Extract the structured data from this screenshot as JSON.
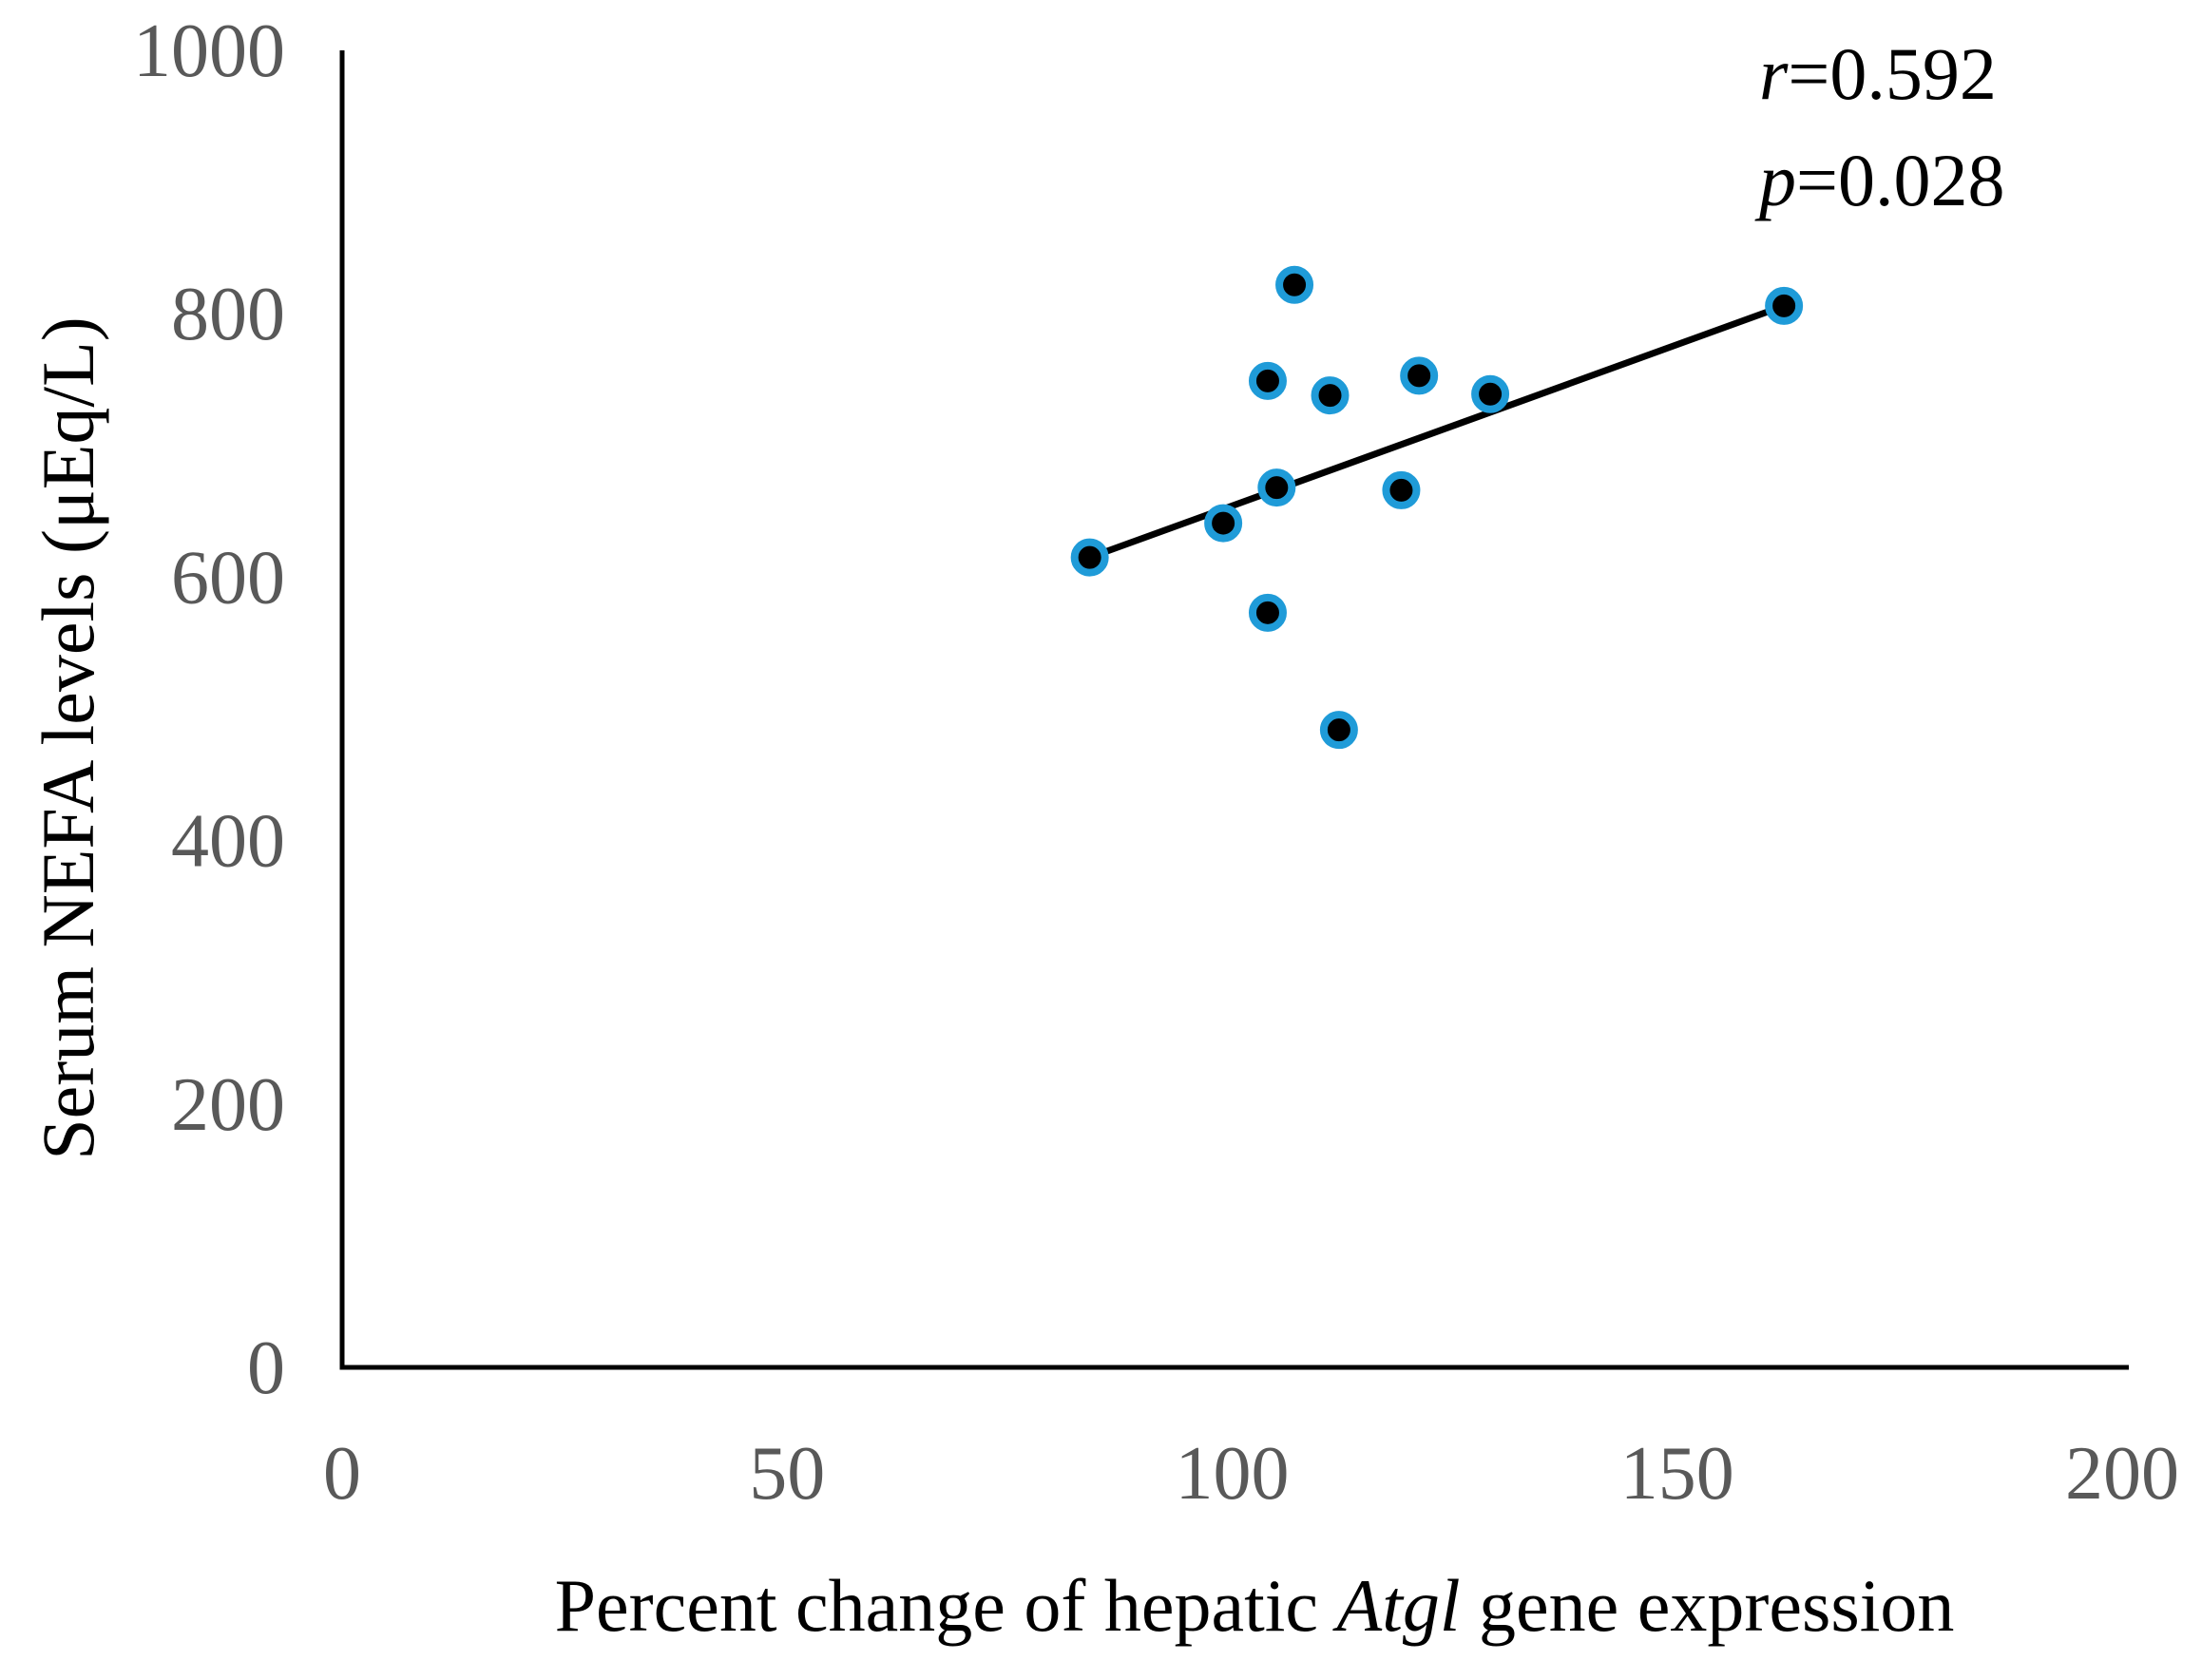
{
  "chart_data": {
    "type": "scatter",
    "title": "",
    "xlabel_parts": {
      "prefix": "Percent change of hepatic ",
      "italic": "Atgl",
      "suffix": " gene expression"
    },
    "ylabel": "Serum NEFA levels (μEq/L)",
    "xlim": [
      0,
      200
    ],
    "ylim": [
      0,
      1000
    ],
    "xticks": [
      0,
      50,
      100,
      150,
      200
    ],
    "yticks": [
      0,
      200,
      400,
      600,
      800,
      1000
    ],
    "grid": false,
    "legend": "none",
    "points": [
      {
        "x": 84,
        "y": 615
      },
      {
        "x": 99,
        "y": 641
      },
      {
        "x": 104,
        "y": 749
      },
      {
        "x": 104,
        "y": 573
      },
      {
        "x": 105,
        "y": 668
      },
      {
        "x": 107,
        "y": 822
      },
      {
        "x": 111,
        "y": 738
      },
      {
        "x": 112,
        "y": 484
      },
      {
        "x": 119,
        "y": 666
      },
      {
        "x": 121,
        "y": 753
      },
      {
        "x": 129,
        "y": 739
      },
      {
        "x": 162,
        "y": 806
      }
    ],
    "trendline": {
      "x1": 84,
      "y1": 615,
      "x2": 162,
      "y2": 806
    },
    "annotations": [
      {
        "italic": "r",
        "rest": "=0.592"
      },
      {
        "italic": "p",
        "rest": "=0.028"
      }
    ],
    "colors": {
      "marker_core": "#000000",
      "marker_ring": "#1f9bd8",
      "trendline": "#000000",
      "axis_line": "#000000",
      "tick_label": "#595959",
      "title_text": "#000000"
    }
  }
}
